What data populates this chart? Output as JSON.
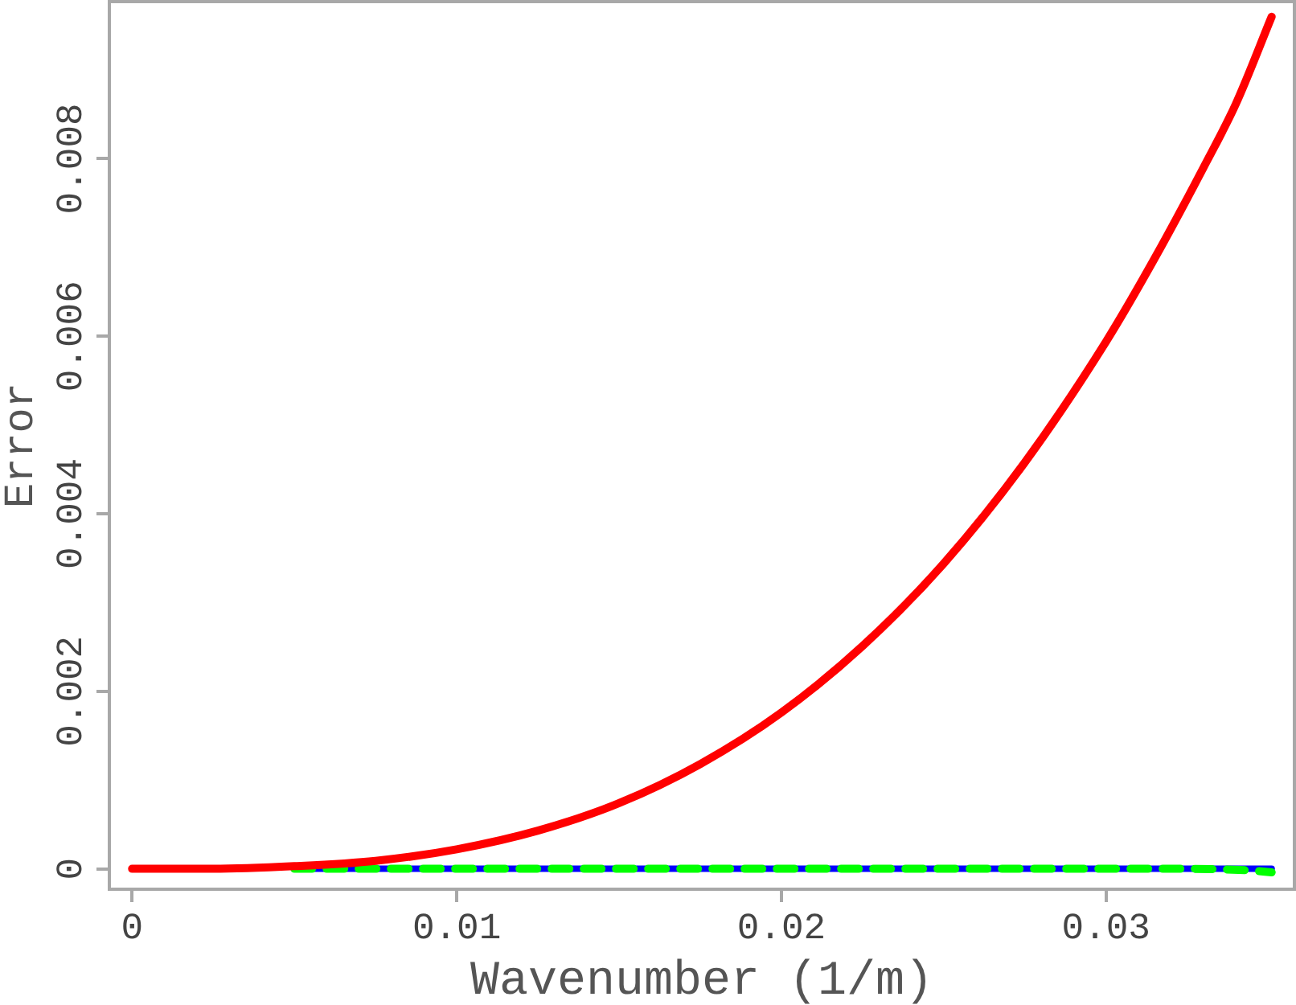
{
  "chart_data": {
    "type": "line",
    "xlabel": "Wavenumber (1/m)",
    "ylabel": "Error",
    "xlim": [
      -0.0007,
      0.0358
    ],
    "ylim": [
      -0.00023,
      0.00977
    ],
    "xticks": [
      0,
      0.01,
      0.02,
      0.03
    ],
    "yticks": [
      0,
      0.002,
      0.004,
      0.006,
      0.008
    ],
    "marker": "none",
    "series": [
      {
        "color": "#ff0000",
        "line_style": "solid",
        "x": [
          0,
          0.0025,
          0.005,
          0.0075,
          0.01,
          0.0125,
          0.015,
          0.0175,
          0.02,
          0.0225,
          0.025,
          0.0275,
          0.03,
          0.0315,
          0.033,
          0.034,
          0.0351
        ],
        "values": [
          0,
          0,
          3e-05,
          9e-05,
          0.00022,
          0.00043,
          0.00074,
          0.00118,
          0.00176,
          0.00251,
          0.00344,
          0.00458,
          0.00594,
          0.00688,
          0.0079,
          0.00862,
          0.0096
        ]
      },
      {
        "color": "#00ff00",
        "line_style": "dashed",
        "x": [
          0.005,
          0.01,
          0.015,
          0.02,
          0.025,
          0.03,
          0.0325,
          0.0345,
          0.0351
        ],
        "values": [
          0,
          0,
          0,
          0,
          0,
          0,
          0,
          -2e-05,
          -4e-05
        ]
      },
      {
        "color": "#0000ff",
        "line_style": "solid",
        "x": [
          0.005,
          0.01,
          0.015,
          0.02,
          0.025,
          0.03,
          0.0325,
          0.0345,
          0.0351
        ],
        "values": [
          0,
          0,
          0,
          0,
          0,
          0,
          0,
          0,
          0
        ]
      }
    ]
  }
}
